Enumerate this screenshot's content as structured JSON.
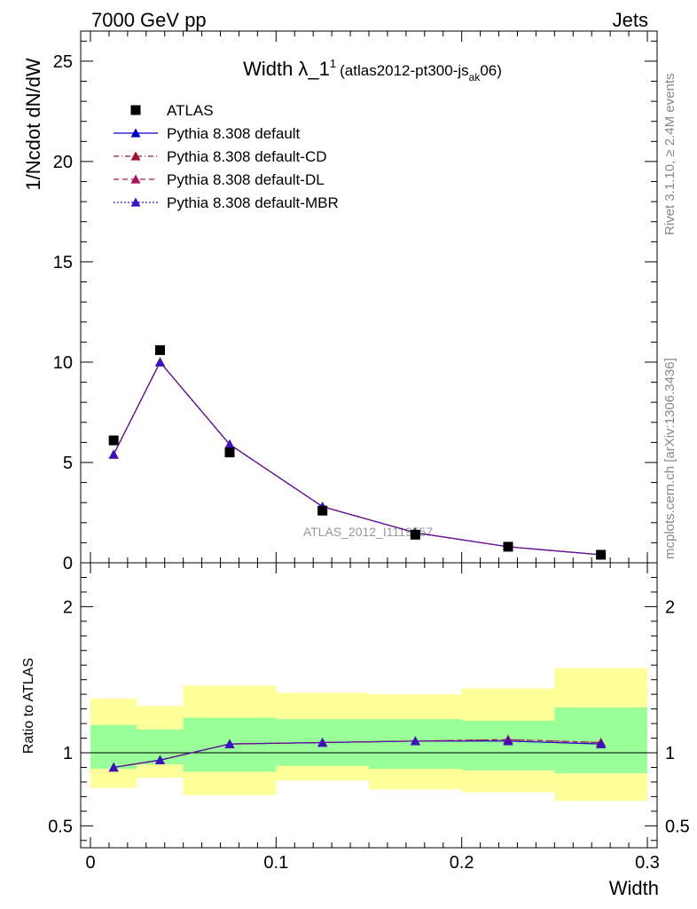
{
  "header": {
    "left": "7000 GeV pp",
    "right": "Jets"
  },
  "side_labels": {
    "rivet": "Rivet 3.1.10, ≥ 2.4M events",
    "mcplots": "mcplots.cern.ch [arXiv:1306.3436]"
  },
  "watermark": "ATLAS_2012_I1119557",
  "colors": {
    "data": "#000000",
    "default": "#0000cc",
    "cd": "#a0102a",
    "dl": "#b01060",
    "mbr": "#3a10c0",
    "band_outer": "#ffff99",
    "band_inner": "#99ff99"
  },
  "chart_data": [
    {
      "type": "line",
      "title_main": "Width λ_1",
      "title_sup": "1",
      "title_paren_open": "(atlas2012-pt300-js",
      "title_sub": "ak",
      "title_paren_close": "06)",
      "ylabel": "1/Ncdot dN/dW",
      "xlim": [
        0,
        0.3
      ],
      "ylim": [
        0,
        26.5
      ],
      "yticks": [
        0,
        5,
        10,
        15,
        20,
        25
      ],
      "ytick_labels": [
        "0",
        "5",
        "10",
        "15",
        "20",
        "25"
      ],
      "x": [
        0.0125,
        0.0375,
        0.075,
        0.125,
        0.175,
        0.225,
        0.275
      ],
      "data_points": {
        "name": "ATLAS",
        "values": [
          6.1,
          10.6,
          5.5,
          2.6,
          1.4,
          0.8,
          0.4
        ]
      },
      "series": [
        {
          "name": "Pythia 8.308 default",
          "key": "default",
          "dash": "",
          "values": [
            5.4,
            10.0,
            5.9,
            2.8,
            1.5,
            0.8,
            0.4
          ]
        },
        {
          "name": "Pythia 8.308 default-CD",
          "key": "cd",
          "dash": "6,3,1,3",
          "values": [
            5.4,
            10.0,
            5.9,
            2.8,
            1.5,
            0.8,
            0.4
          ]
        },
        {
          "name": "Pythia 8.308 default-DL",
          "key": "dl",
          "dash": "6,4",
          "values": [
            5.4,
            10.0,
            5.9,
            2.8,
            1.5,
            0.8,
            0.4
          ]
        },
        {
          "name": "Pythia 8.308 default-MBR",
          "key": "mbr",
          "dash": "2,2",
          "values": [
            5.4,
            10.0,
            5.9,
            2.8,
            1.5,
            0.8,
            0.4
          ]
        }
      ],
      "legend": "top-left"
    },
    {
      "type": "line",
      "ylabel": "Ratio to ATLAS",
      "xlabel": "Width",
      "xlim": [
        0,
        0.3
      ],
      "ylim": [
        0.35,
        2.3
      ],
      "xticks": [
        0,
        0.1,
        0.2,
        0.3
      ],
      "xtick_labels": [
        "0",
        "0.1",
        "0.2",
        "0.3"
      ],
      "yticks": [
        0.5,
        1,
        2
      ],
      "ytick_labels": [
        "0.5",
        "1",
        "2"
      ],
      "bins": [
        [
          0,
          0.025
        ],
        [
          0.025,
          0.05
        ],
        [
          0.05,
          0.1
        ],
        [
          0.1,
          0.15
        ],
        [
          0.15,
          0.2
        ],
        [
          0.2,
          0.25
        ],
        [
          0.25,
          0.3
        ]
      ],
      "band_inner": [
        [
          0.89,
          1.19
        ],
        [
          0.92,
          1.16
        ],
        [
          0.87,
          1.24
        ],
        [
          0.91,
          1.23
        ],
        [
          0.89,
          1.23
        ],
        [
          0.88,
          1.22
        ],
        [
          0.86,
          1.31
        ]
      ],
      "band_outer": [
        [
          0.76,
          1.37
        ],
        [
          0.83,
          1.32
        ],
        [
          0.71,
          1.46
        ],
        [
          0.81,
          1.41
        ],
        [
          0.75,
          1.4
        ],
        [
          0.73,
          1.44
        ],
        [
          0.67,
          1.58
        ]
      ],
      "x": [
        0.0125,
        0.0375,
        0.075,
        0.125,
        0.175,
        0.225,
        0.275
      ],
      "series": [
        {
          "name": "Pythia 8.308 default",
          "key": "default",
          "dash": "",
          "values": [
            0.9,
            0.95,
            1.06,
            1.07,
            1.08,
            1.08,
            1.06
          ]
        },
        {
          "name": "Pythia 8.308 default-CD",
          "key": "cd",
          "dash": "6,3,1,3",
          "values": [
            0.9,
            0.95,
            1.06,
            1.07,
            1.08,
            1.09,
            1.07
          ]
        },
        {
          "name": "Pythia 8.308 default-DL",
          "key": "dl",
          "dash": "6,4",
          "values": [
            0.9,
            0.95,
            1.06,
            1.07,
            1.08,
            1.09,
            1.07
          ]
        },
        {
          "name": "Pythia 8.308 default-MBR",
          "key": "mbr",
          "dash": "2,2",
          "values": [
            0.9,
            0.95,
            1.06,
            1.07,
            1.08,
            1.08,
            1.06
          ]
        }
      ]
    }
  ]
}
